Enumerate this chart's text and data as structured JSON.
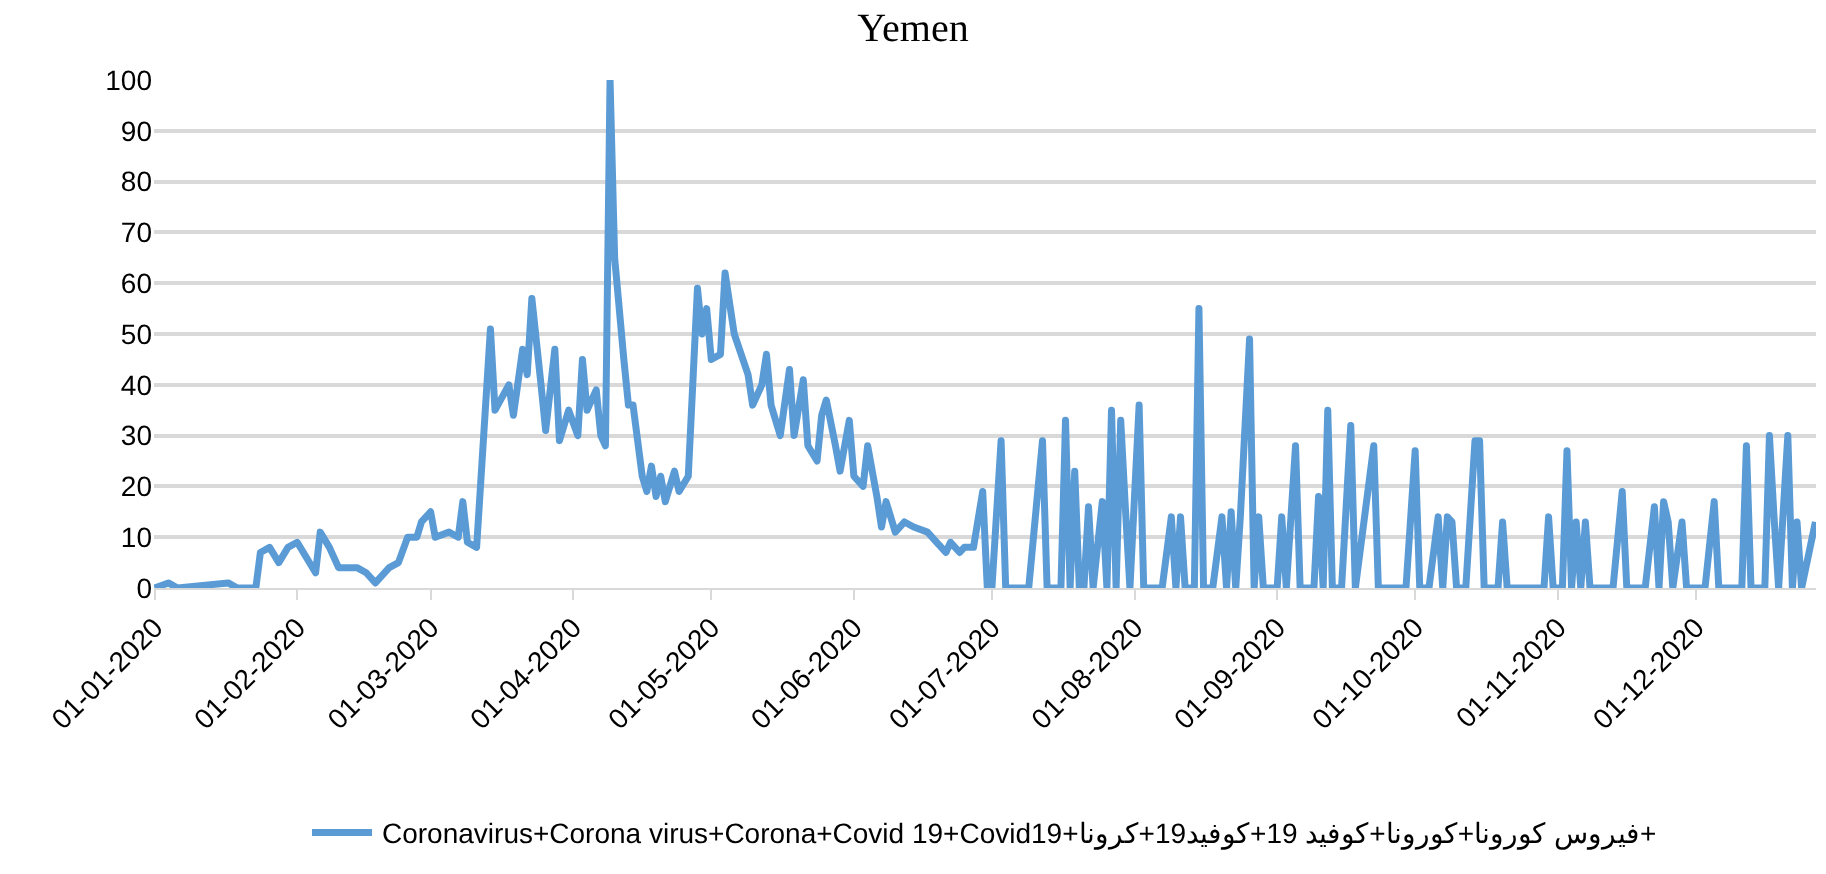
{
  "chart_data": {
    "type": "line",
    "title": "Yemen",
    "x": [
      "2020-01-01",
      "2020-01-04",
      "2020-01-06",
      "2020-01-17",
      "2020-01-19",
      "2020-01-23",
      "2020-01-24",
      "2020-01-26",
      "2020-01-28",
      "2020-01-30",
      "2020-02-01",
      "2020-02-03",
      "2020-02-05",
      "2020-02-06",
      "2020-02-08",
      "2020-02-10",
      "2020-02-14",
      "2020-02-16",
      "2020-02-18",
      "2020-02-21",
      "2020-02-23",
      "2020-02-25",
      "2020-02-27",
      "2020-02-28",
      "2020-03-01",
      "2020-03-02",
      "2020-03-05",
      "2020-03-07",
      "2020-03-08",
      "2020-03-09",
      "2020-03-11",
      "2020-03-14",
      "2020-03-15",
      "2020-03-18",
      "2020-03-19",
      "2020-03-21",
      "2020-03-22",
      "2020-03-23",
      "2020-03-25",
      "2020-03-26",
      "2020-03-28",
      "2020-03-29",
      "2020-03-31",
      "2020-04-02",
      "2020-04-03",
      "2020-04-04",
      "2020-04-06",
      "2020-04-07",
      "2020-04-08",
      "2020-04-09",
      "2020-04-10",
      "2020-04-12",
      "2020-04-13",
      "2020-04-14",
      "2020-04-16",
      "2020-04-17",
      "2020-04-18",
      "2020-04-19",
      "2020-04-20",
      "2020-04-21",
      "2020-04-23",
      "2020-04-24",
      "2020-04-26",
      "2020-04-28",
      "2020-04-29",
      "2020-04-30",
      "2020-05-01",
      "2020-05-03",
      "2020-05-04",
      "2020-05-06",
      "2020-05-09",
      "2020-05-10",
      "2020-05-12",
      "2020-05-13",
      "2020-05-14",
      "2020-05-16",
      "2020-05-18",
      "2020-05-19",
      "2020-05-21",
      "2020-05-22",
      "2020-05-24",
      "2020-05-25",
      "2020-05-26",
      "2020-05-28",
      "2020-05-29",
      "2020-05-31",
      "2020-06-01",
      "2020-06-03",
      "2020-06-04",
      "2020-06-06",
      "2020-06-07",
      "2020-06-08",
      "2020-06-10",
      "2020-06-12",
      "2020-06-14",
      "2020-06-17",
      "2020-06-19",
      "2020-06-21",
      "2020-06-22",
      "2020-06-24",
      "2020-06-25",
      "2020-06-27",
      "2020-06-29",
      "2020-06-30",
      "2020-07-01",
      "2020-07-03",
      "2020-07-04",
      "2020-07-09",
      "2020-07-12",
      "2020-07-13",
      "2020-07-16",
      "2020-07-17",
      "2020-07-18",
      "2020-07-19",
      "2020-07-20",
      "2020-07-21",
      "2020-07-22",
      "2020-07-23",
      "2020-07-25",
      "2020-07-26",
      "2020-07-27",
      "2020-07-28",
      "2020-07-29",
      "2020-07-30",
      "2020-07-31",
      "2020-08-02",
      "2020-08-03",
      "2020-08-07",
      "2020-08-09",
      "2020-08-10",
      "2020-08-11",
      "2020-08-12",
      "2020-08-14",
      "2020-08-15",
      "2020-08-16",
      "2020-08-18",
      "2020-08-20",
      "2020-08-21",
      "2020-08-22",
      "2020-08-23",
      "2020-08-24",
      "2020-08-26",
      "2020-08-27",
      "2020-08-28",
      "2020-08-29",
      "2020-09-01",
      "2020-09-02",
      "2020-09-03",
      "2020-09-05",
      "2020-09-06",
      "2020-09-09",
      "2020-09-10",
      "2020-09-11",
      "2020-09-12",
      "2020-09-13",
      "2020-09-15",
      "2020-09-17",
      "2020-09-18",
      "2020-09-22",
      "2020-09-23",
      "2020-09-29",
      "2020-10-01",
      "2020-10-02",
      "2020-10-04",
      "2020-10-06",
      "2020-10-07",
      "2020-10-08",
      "2020-10-09",
      "2020-10-10",
      "2020-10-12",
      "2020-10-14",
      "2020-10-15",
      "2020-10-16",
      "2020-10-19",
      "2020-10-20",
      "2020-10-21",
      "2020-10-29",
      "2020-10-30",
      "2020-10-31",
      "2020-11-02",
      "2020-11-03",
      "2020-11-04",
      "2020-11-05",
      "2020-11-06",
      "2020-11-07",
      "2020-11-08",
      "2020-11-13",
      "2020-11-15",
      "2020-11-16",
      "2020-11-20",
      "2020-11-22",
      "2020-11-23",
      "2020-11-24",
      "2020-11-25",
      "2020-11-26",
      "2020-11-28",
      "2020-11-29",
      "2020-12-03",
      "2020-12-05",
      "2020-12-06",
      "2020-12-11",
      "2020-12-12",
      "2020-12-13",
      "2020-12-16",
      "2020-12-17",
      "2020-12-18",
      "2020-12-19",
      "2020-12-21",
      "2020-12-22",
      "2020-12-23",
      "2020-12-24",
      "2020-12-27"
    ],
    "series": [
      {
        "name": "Coronavirus+Corona virus+Corona+Covid 19+Covid19+فيروس كورونا+كورونا+كوفيد 19+كوفيد19+كرونا+",
        "color": "#5b9bd5",
        "values": [
          0,
          1,
          0,
          1,
          0,
          0,
          7,
          8,
          5,
          8,
          9,
          6,
          3,
          11,
          8,
          4,
          4,
          3,
          1,
          4,
          5,
          10,
          10,
          13,
          15,
          10,
          11,
          10,
          17,
          9,
          8,
          51,
          35,
          40,
          34,
          47,
          42,
          57,
          40,
          31,
          47,
          29,
          35,
          30,
          45,
          35,
          39,
          30,
          28,
          100,
          65,
          45,
          36,
          36,
          22,
          19,
          24,
          18,
          22,
          17,
          23,
          19,
          22,
          59,
          50,
          55,
          45,
          46,
          62,
          50,
          42,
          36,
          40,
          46,
          36,
          30,
          43,
          30,
          41,
          28,
          25,
          34,
          37,
          28,
          23,
          33,
          22,
          20,
          28,
          18,
          12,
          17,
          11,
          13,
          12,
          11,
          9,
          7,
          9,
          7,
          8,
          8,
          19,
          0,
          0,
          29,
          0,
          0,
          29,
          0,
          0,
          33,
          0,
          23,
          0,
          0,
          16,
          0,
          17,
          0,
          35,
          0,
          33,
          16,
          0,
          36,
          0,
          0,
          14,
          0,
          14,
          0,
          0,
          55,
          0,
          0,
          14,
          0,
          15,
          0,
          14,
          49,
          0,
          14,
          0,
          0,
          14,
          0,
          28,
          0,
          0,
          18,
          0,
          35,
          0,
          0,
          32,
          0,
          28,
          0,
          0,
          27,
          0,
          0,
          14,
          0,
          14,
          13,
          0,
          0,
          29,
          29,
          0,
          0,
          13,
          0,
          0,
          14,
          0,
          0,
          27,
          0,
          13,
          0,
          13,
          0,
          0,
          19,
          0,
          0,
          16,
          0,
          17,
          13,
          0,
          13,
          0,
          0,
          17,
          0,
          0,
          28,
          0,
          0,
          30,
          14,
          0,
          30,
          0,
          13,
          0,
          13
        ]
      }
    ],
    "xlim": [
      "2020-01-01",
      "2020-12-27"
    ],
    "xticks": [
      {
        "value": "2020-01-01",
        "label": "01-01-2020"
      },
      {
        "value": "2020-02-01",
        "label": "01-02-2020"
      },
      {
        "value": "2020-03-01",
        "label": "01-03-2020"
      },
      {
        "value": "2020-04-01",
        "label": "01-04-2020"
      },
      {
        "value": "2020-05-01",
        "label": "01-05-2020"
      },
      {
        "value": "2020-06-01",
        "label": "01-06-2020"
      },
      {
        "value": "2020-07-01",
        "label": "01-07-2020"
      },
      {
        "value": "2020-08-01",
        "label": "01-08-2020"
      },
      {
        "value": "2020-09-01",
        "label": "01-09-2020"
      },
      {
        "value": "2020-10-01",
        "label": "01-10-2020"
      },
      {
        "value": "2020-11-01",
        "label": "01-11-2020"
      },
      {
        "value": "2020-12-01",
        "label": "01-12-2020"
      }
    ],
    "ylim": [
      0,
      100
    ],
    "yticks": [
      0,
      10,
      20,
      30,
      40,
      50,
      60,
      70,
      80,
      90,
      100
    ],
    "grid": "y",
    "legend": "bottom",
    "marker": "none",
    "line_style": "solid"
  }
}
